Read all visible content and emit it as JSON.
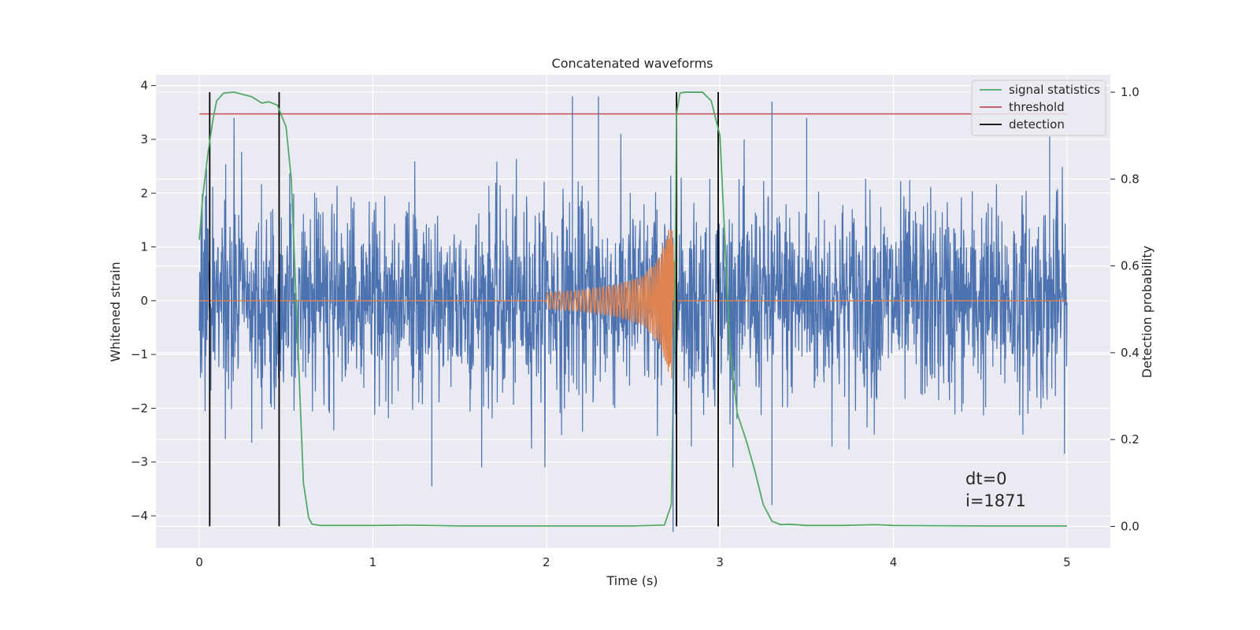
{
  "chart_data": {
    "type": "line",
    "title": "Concatenated waveforms",
    "xlabel": "Time (s)",
    "ylabel": "Whitened strain",
    "y2label": "Detection probability",
    "xlim": [
      -0.25,
      5.25
    ],
    "ylim": [
      -4.6,
      4.2
    ],
    "y2lim": [
      -0.05,
      1.04
    ],
    "x_ticks": [
      0,
      1,
      2,
      3,
      4,
      5
    ],
    "y_ticks": [
      -4,
      -3,
      -2,
      -1,
      0,
      1,
      2,
      3,
      4
    ],
    "y2_ticks": [
      0.0,
      0.2,
      0.4,
      0.6,
      0.8,
      1.0
    ],
    "y2_tick_labels": [
      "0.0",
      "0.2",
      "0.4",
      "0.6",
      "0.8",
      "1.0"
    ],
    "grid": true,
    "legend_position": "top-right",
    "colors": {
      "strain": "#4c72b0",
      "waveform": "#dd8452",
      "signal_statistics": "#55a868",
      "threshold": "#c44e52",
      "detection": "#000000",
      "background": "#eaeaf2"
    },
    "series": [
      {
        "name": "whitened-strain",
        "axis": "left",
        "x_range": [
          0,
          5
        ],
        "envelope": {
          "x": [
            0,
            1,
            2,
            3,
            4,
            5
          ],
          "typical_abs": [
            1.6,
            1.6,
            1.6,
            1.6,
            1.6,
            1.6
          ]
        },
        "peaks": [
          {
            "x": 0.2,
            "y": 3.4
          },
          {
            "x": 2.15,
            "y": 3.8
          },
          {
            "x": 2.3,
            "y": 3.8
          },
          {
            "x": 2.73,
            "y": -4.3
          },
          {
            "x": 3.3,
            "y": -3.8
          },
          {
            "x": 3.3,
            "y": 3.7
          },
          {
            "x": 3.5,
            "y": 3.4
          },
          {
            "x": 1.34,
            "y": -3.45
          },
          {
            "x": 4.9,
            "y": 3.05
          }
        ]
      },
      {
        "name": "injected-waveform",
        "axis": "left",
        "x": [
          0,
          2.0,
          2.2,
          2.4,
          2.55,
          2.65,
          2.7,
          2.72,
          2.75,
          5.0
        ],
        "amplitude": [
          0,
          0.15,
          0.2,
          0.3,
          0.45,
          0.8,
          1.3,
          1.6,
          0,
          0
        ]
      },
      {
        "name": "signal statistics",
        "axis": "right",
        "x": [
          0,
          0.02,
          0.05,
          0.08,
          0.1,
          0.14,
          0.2,
          0.3,
          0.36,
          0.4,
          0.45,
          0.5,
          0.53,
          0.55,
          0.58,
          0.6,
          0.63,
          0.65,
          0.7,
          1.0,
          1.2,
          1.5,
          2.0,
          2.5,
          2.68,
          2.72,
          2.74,
          2.75,
          2.77,
          2.8,
          2.9,
          2.95,
          3.0,
          3.03,
          3.06,
          3.1,
          3.15,
          3.2,
          3.25,
          3.3,
          3.35,
          3.4,
          3.5,
          3.7,
          3.9,
          4.0,
          4.5,
          5.0
        ],
        "values": [
          0.66,
          0.76,
          0.86,
          0.94,
          0.98,
          0.998,
          1.0,
          0.99,
          0.975,
          0.978,
          0.97,
          0.92,
          0.8,
          0.6,
          0.3,
          0.1,
          0.02,
          0.005,
          0.002,
          0.002,
          0.003,
          0.001,
          0.001,
          0.001,
          0.003,
          0.05,
          0.5,
          0.95,
          0.998,
          1.0,
          1.0,
          0.98,
          0.9,
          0.65,
          0.4,
          0.26,
          0.2,
          0.13,
          0.05,
          0.012,
          0.004,
          0.005,
          0.002,
          0.002,
          0.004,
          0.002,
          0.001,
          0.001
        ]
      },
      {
        "name": "threshold",
        "axis": "right",
        "x": [
          0,
          5
        ],
        "values": [
          0.95,
          0.95
        ]
      },
      {
        "name": "detection",
        "axis": "right",
        "type": "vlines",
        "x": [
          0.06,
          0.46,
          2.75,
          2.99
        ],
        "ymin": 0.0,
        "ymax": 1.0
      }
    ],
    "legend": [
      "signal statistics",
      "threshold",
      "detection"
    ],
    "annotations": [
      "dt=0",
      "i=1871"
    ]
  }
}
